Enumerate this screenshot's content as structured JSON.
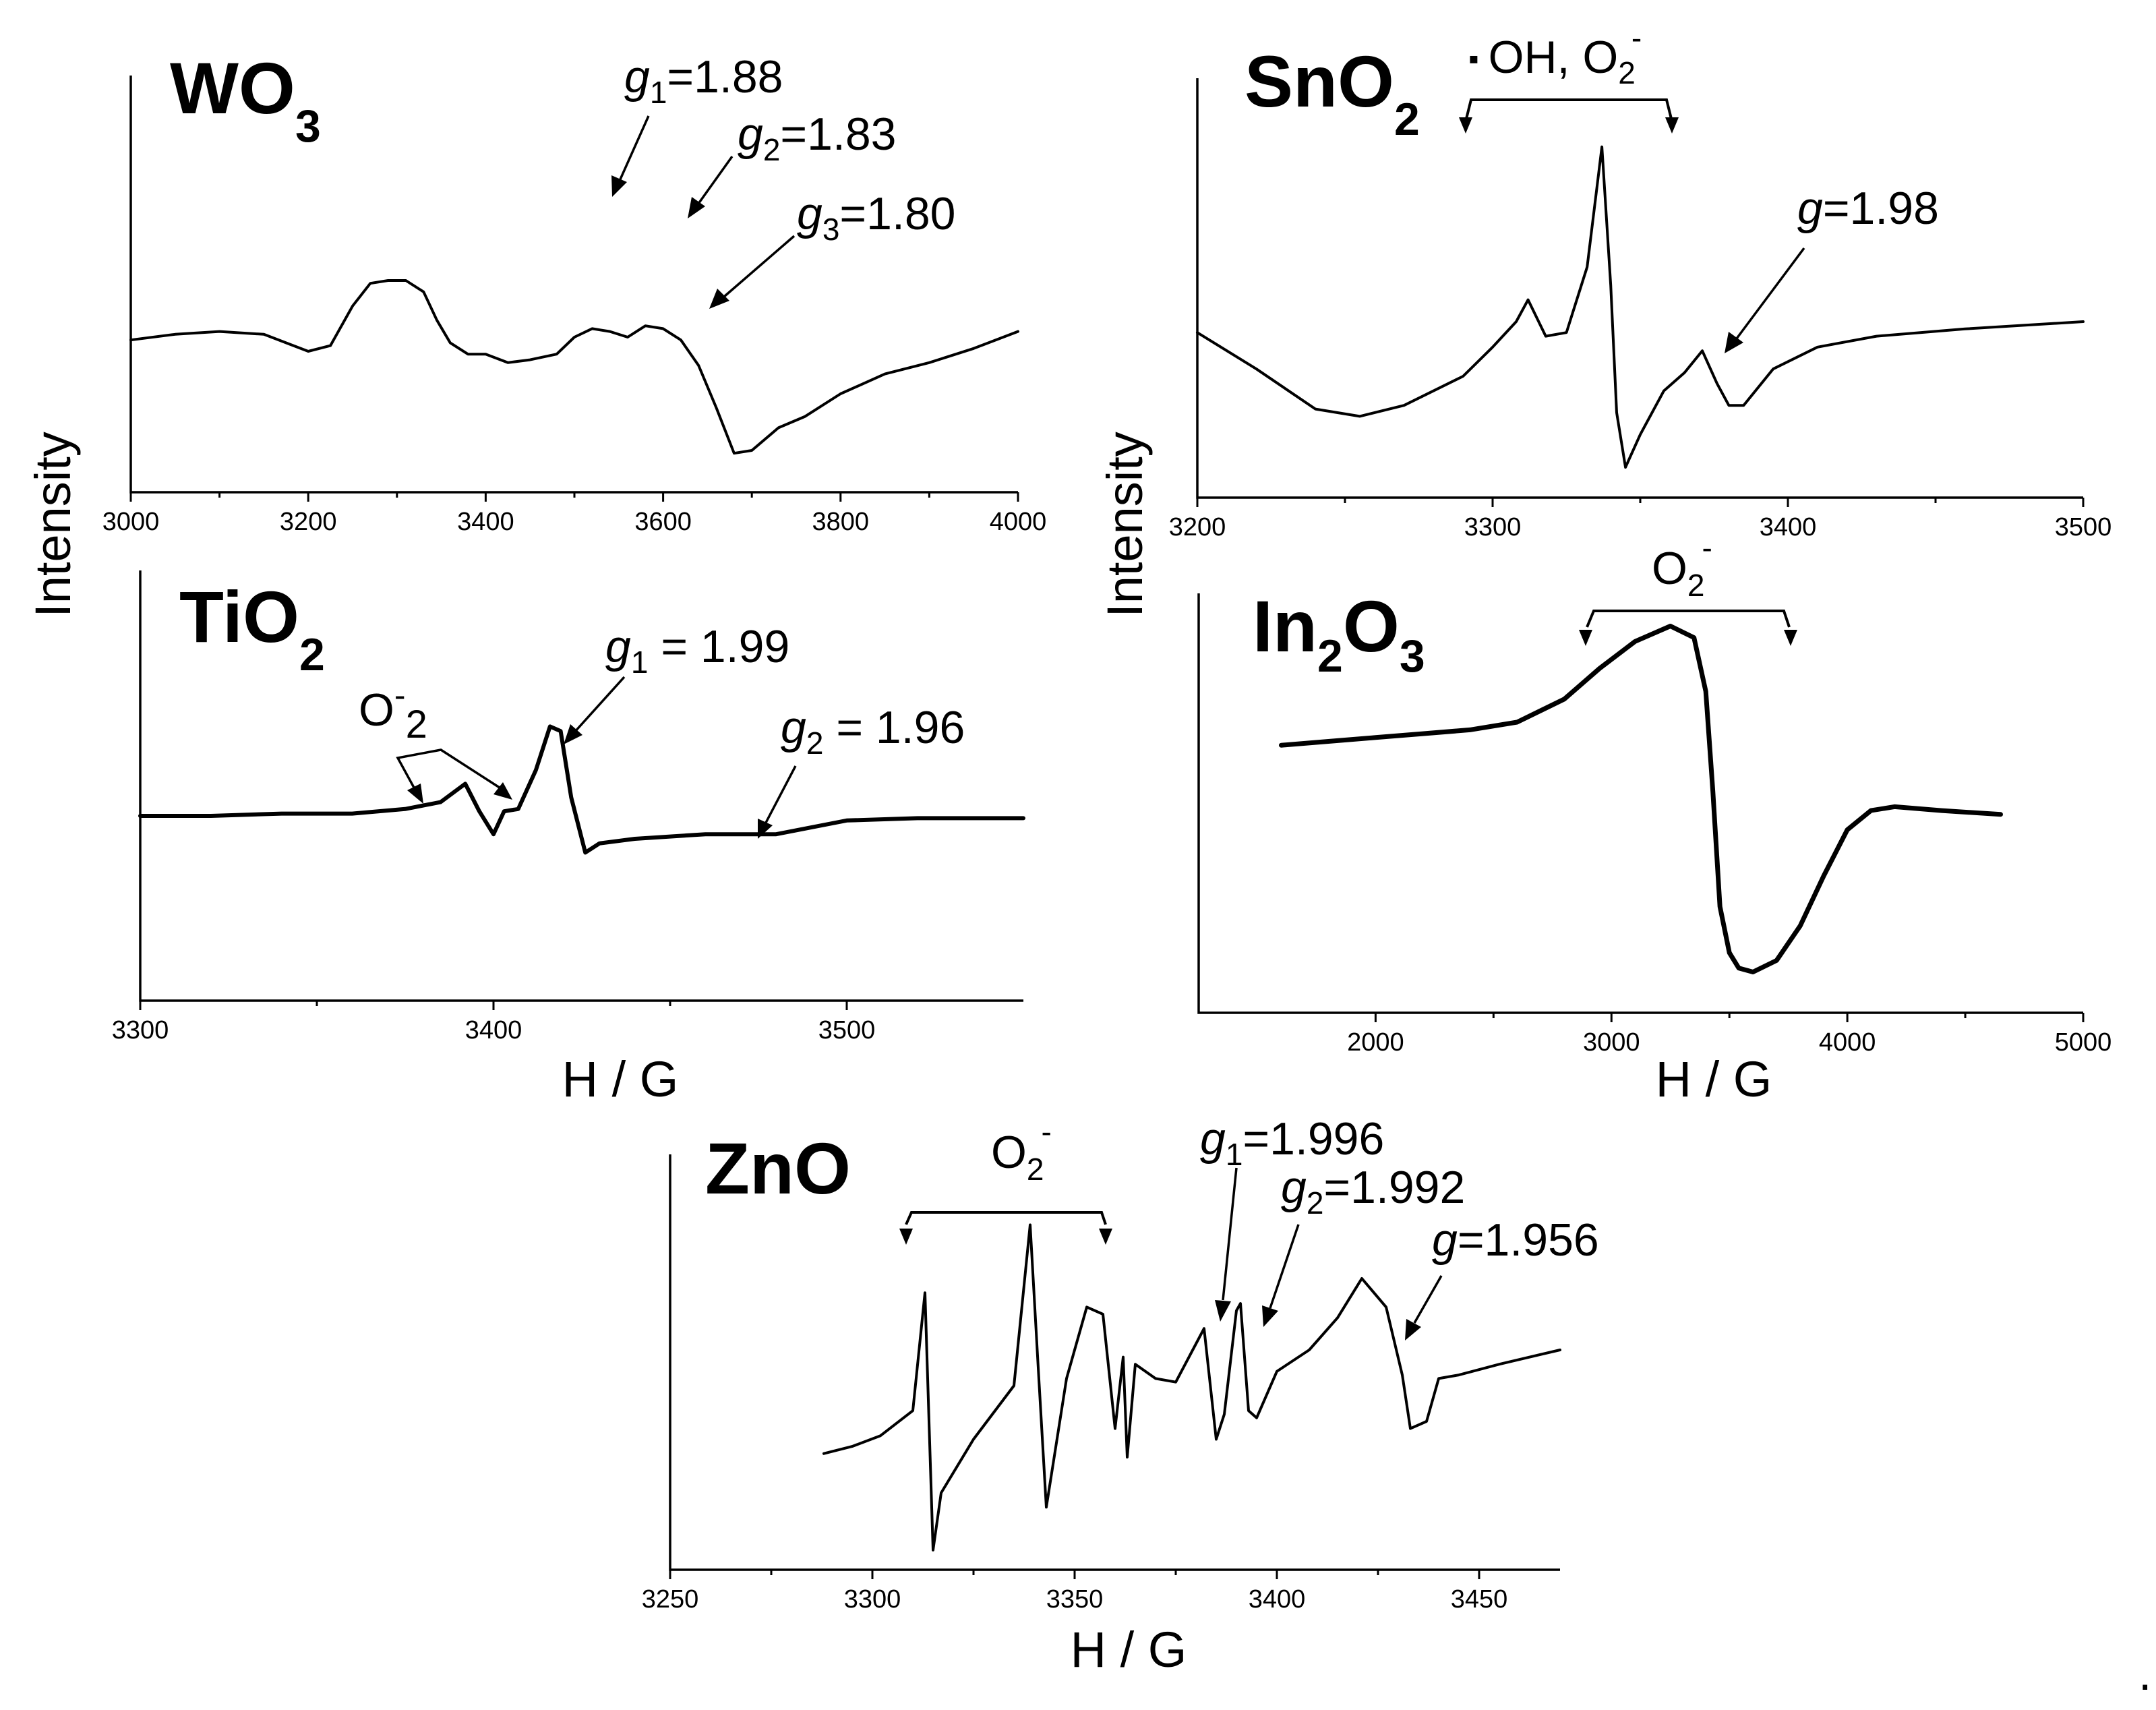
{
  "figure": {
    "y_axis_title": "Intensity",
    "x_axis_title": "H / G",
    "trailing_mark": "."
  },
  "chart_data": [
    {
      "id": "wo3",
      "type": "line",
      "title": "WO3",
      "title_main": "WO",
      "title_sub": "3",
      "xlabel": "",
      "ylabel": "Intensity",
      "xlim": [
        3000,
        4000
      ],
      "ylim": [
        0,
        1
      ],
      "xticks": [
        3000,
        3200,
        3400,
        3600,
        3800,
        4000
      ],
      "x": [
        3000,
        3050,
        3100,
        3150,
        3200,
        3225,
        3250,
        3270,
        3290,
        3310,
        3330,
        3345,
        3360,
        3380,
        3400,
        3425,
        3450,
        3480,
        3500,
        3520,
        3540,
        3560,
        3580,
        3600,
        3620,
        3640,
        3660,
        3680,
        3700,
        3730,
        3760,
        3800,
        3850,
        3900,
        3950,
        4000
      ],
      "values": [
        0.49,
        0.51,
        0.52,
        0.51,
        0.45,
        0.47,
        0.61,
        0.69,
        0.7,
        0.7,
        0.66,
        0.56,
        0.48,
        0.44,
        0.44,
        0.41,
        0.42,
        0.44,
        0.5,
        0.53,
        0.52,
        0.5,
        0.54,
        0.53,
        0.49,
        0.4,
        0.25,
        0.09,
        0.1,
        0.18,
        0.22,
        0.3,
        0.37,
        0.41,
        0.46,
        0.52
      ],
      "annotations": [
        {
          "symbol": "g",
          "sub": "1",
          "text": "=1.88"
        },
        {
          "symbol": "g",
          "sub": "2",
          "text": "=1.83"
        },
        {
          "symbol": "g",
          "sub": "3",
          "text": "=1.80"
        }
      ]
    },
    {
      "id": "sno2",
      "type": "line",
      "title": "SnO2",
      "title_main": "SnO",
      "title_sub": "2",
      "xlabel": "",
      "ylabel": "Intensity",
      "xlim": [
        3200,
        3500
      ],
      "ylim": [
        0,
        1
      ],
      "xticks": [
        3200,
        3300,
        3400,
        3500
      ],
      "x": [
        3200,
        3220,
        3240,
        3255,
        3270,
        3290,
        3300,
        3308,
        3312,
        3318,
        3325,
        3332,
        3337,
        3340,
        3342,
        3345,
        3350,
        3358,
        3365,
        3371,
        3376,
        3380,
        3385,
        3395,
        3410,
        3430,
        3460,
        3500
      ],
      "values": [
        0.42,
        0.32,
        0.21,
        0.19,
        0.22,
        0.3,
        0.38,
        0.45,
        0.51,
        0.41,
        0.42,
        0.6,
        0.93,
        0.55,
        0.2,
        0.05,
        0.14,
        0.26,
        0.31,
        0.37,
        0.28,
        0.22,
        0.22,
        0.32,
        0.38,
        0.41,
        0.43,
        0.45
      ],
      "annotations": [
        {
          "text": "OH, O",
          "sub": "2",
          "sup": "-",
          "dot": "▪"
        },
        {
          "symbol": "g",
          "text": "=1.98"
        }
      ]
    },
    {
      "id": "tio2",
      "type": "line",
      "title": "TiO2",
      "title_main": "TiO",
      "title_sub": "2",
      "xlabel": "H / G",
      "ylabel": "Intensity",
      "xlim": [
        3300,
        3550
      ],
      "ylim": [
        0,
        1
      ],
      "xticks": [
        3300,
        3400,
        3500
      ],
      "x": [
        3300,
        3320,
        3340,
        3360,
        3375,
        3385,
        3392,
        3396,
        3400,
        3403,
        3407,
        3412,
        3416,
        3419,
        3422,
        3426,
        3430,
        3440,
        3460,
        3480,
        3500,
        3520,
        3550
      ],
      "values": [
        0.5,
        0.5,
        0.51,
        0.51,
        0.53,
        0.56,
        0.64,
        0.52,
        0.42,
        0.52,
        0.53,
        0.7,
        0.89,
        0.87,
        0.58,
        0.34,
        0.38,
        0.4,
        0.42,
        0.42,
        0.48,
        0.49,
        0.49
      ],
      "annotations": [
        {
          "text": "O",
          "sup": "-",
          "sub": "2"
        },
        {
          "symbol": "g",
          "sub": "1",
          "text": " = 1.99"
        },
        {
          "symbol": "g",
          "sub": "2",
          "text": " = 1.96"
        }
      ]
    },
    {
      "id": "in2o3",
      "type": "line",
      "title": "In2O3",
      "title_parts": [
        "In",
        "2",
        "O",
        "3"
      ],
      "xlabel": "H / G",
      "ylabel": "Intensity",
      "xlim": [
        1250,
        5000
      ],
      "ylim": [
        0,
        1
      ],
      "xticks": [
        2000,
        3000,
        4000,
        5000
      ],
      "x": [
        1600,
        1800,
        2000,
        2200,
        2400,
        2600,
        2800,
        2950,
        3100,
        3250,
        3350,
        3400,
        3430,
        3460,
        3500,
        3540,
        3600,
        3700,
        3800,
        3900,
        4000,
        4100,
        4200,
        4400,
        4650
      ],
      "values": [
        0.64,
        0.65,
        0.66,
        0.67,
        0.68,
        0.7,
        0.76,
        0.84,
        0.91,
        0.95,
        0.92,
        0.78,
        0.52,
        0.22,
        0.1,
        0.06,
        0.05,
        0.08,
        0.17,
        0.3,
        0.42,
        0.47,
        0.48,
        0.47,
        0.46
      ],
      "annotations": [
        {
          "text": "O",
          "sub": "2",
          "sup": "-"
        }
      ]
    },
    {
      "id": "zno",
      "type": "line",
      "title": "ZnO",
      "xlabel": "H / G",
      "ylabel": "",
      "xlim": [
        3250,
        3470
      ],
      "ylim": [
        0,
        1
      ],
      "xticks": [
        3250,
        3300,
        3350,
        3400,
        3450
      ],
      "x": [
        3288,
        3295,
        3302,
        3310,
        3313,
        3315,
        3317,
        3325,
        3335,
        3339,
        3341,
        3343,
        3348,
        3353,
        3357,
        3360,
        3362,
        3363,
        3365,
        3370,
        3375,
        3382,
        3385,
        3387,
        3390,
        3391,
        3393,
        3395,
        3400,
        3408,
        3415,
        3421,
        3427,
        3431,
        3433,
        3437,
        3440,
        3445,
        3455,
        3470
      ],
      "values": [
        0.31,
        0.33,
        0.36,
        0.43,
        0.76,
        0.04,
        0.2,
        0.35,
        0.5,
        0.95,
        0.55,
        0.16,
        0.52,
        0.72,
        0.7,
        0.38,
        0.58,
        0.3,
        0.56,
        0.52,
        0.51,
        0.66,
        0.35,
        0.42,
        0.71,
        0.73,
        0.43,
        0.41,
        0.54,
        0.6,
        0.69,
        0.8,
        0.72,
        0.53,
        0.38,
        0.4,
        0.52,
        0.53,
        0.56,
        0.6
      ],
      "annotations": [
        {
          "text": "O",
          "sub": "2",
          "sup": "-"
        },
        {
          "symbol": "g",
          "sub": "1",
          "text": "=1.996"
        },
        {
          "symbol": "g",
          "sub": "2",
          "text": "=1.992"
        },
        {
          "symbol": "g",
          "text": "=1.956"
        }
      ]
    }
  ]
}
